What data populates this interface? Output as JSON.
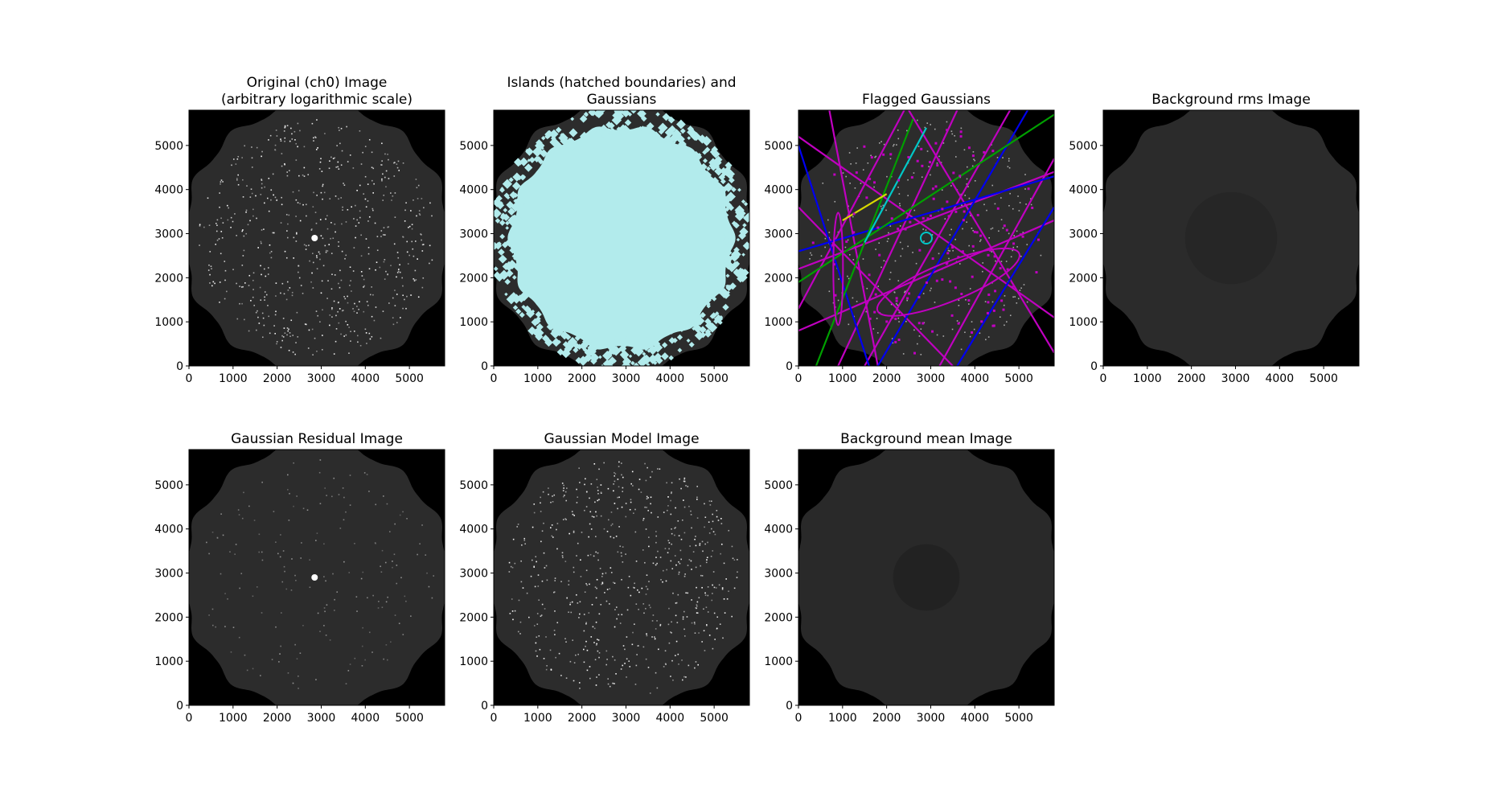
{
  "figure": {
    "panels": [
      {
        "title": [
          "Original (ch0) Image",
          "(arbitrary logarithmic scale)"
        ],
        "kind": "original",
        "xlim": [
          0,
          5800
        ],
        "ylim": [
          0,
          5800
        ],
        "xticks": [
          0,
          1000,
          2000,
          3000,
          4000,
          5000
        ],
        "yticks": [
          0,
          1000,
          2000,
          3000,
          4000,
          5000
        ]
      },
      {
        "title": [
          "Islands (hatched boundaries) and",
          "Gaussians"
        ],
        "kind": "islands",
        "xlim": [
          0,
          5800
        ],
        "ylim": [
          0,
          5800
        ],
        "xticks": [
          0,
          1000,
          2000,
          3000,
          4000,
          5000
        ],
        "yticks": [
          0,
          1000,
          2000,
          3000,
          4000,
          5000
        ]
      },
      {
        "title": [
          "Flagged Gaussians"
        ],
        "kind": "flagged",
        "xlim": [
          0,
          5800
        ],
        "ylim": [
          0,
          5800
        ],
        "xticks": [
          0,
          1000,
          2000,
          3000,
          4000,
          5000
        ],
        "yticks": [
          0,
          1000,
          2000,
          3000,
          4000,
          5000
        ]
      },
      {
        "title": [
          "Background rms Image"
        ],
        "kind": "rms",
        "xlim": [
          0,
          5800
        ],
        "ylim": [
          0,
          5800
        ],
        "xticks": [
          0,
          1000,
          2000,
          3000,
          4000,
          5000
        ],
        "yticks": [
          0,
          1000,
          2000,
          3000,
          4000,
          5000
        ]
      },
      {
        "title": [
          "Gaussian Residual Image"
        ],
        "kind": "residual",
        "xlim": [
          0,
          5800
        ],
        "ylim": [
          0,
          5800
        ],
        "xticks": [
          0,
          1000,
          2000,
          3000,
          4000,
          5000
        ],
        "yticks": [
          0,
          1000,
          2000,
          3000,
          4000,
          5000
        ]
      },
      {
        "title": [
          "Gaussian Model Image"
        ],
        "kind": "model",
        "xlim": [
          0,
          5800
        ],
        "ylim": [
          0,
          5800
        ],
        "xticks": [
          0,
          1000,
          2000,
          3000,
          4000,
          5000
        ],
        "yticks": [
          0,
          1000,
          2000,
          3000,
          4000,
          5000
        ]
      },
      {
        "title": [
          "Background mean Image"
        ],
        "kind": "mean",
        "xlim": [
          0,
          5800
        ],
        "ylim": [
          0,
          5800
        ],
        "xticks": [
          0,
          1000,
          2000,
          3000,
          4000,
          5000
        ],
        "yticks": [
          0,
          1000,
          2000,
          3000,
          4000,
          5000
        ]
      }
    ],
    "colors": {
      "background": "#000000",
      "field": "#2c2c2c",
      "rms_field": "#2b2b2b",
      "mean_field": "#292929",
      "island": "#b2ebec",
      "flag_magenta": "#c000c0",
      "flag_blue": "#0000f0",
      "flag_green": "#00a000",
      "flag_cyan": "#00c8c8",
      "flag_yellow": "#d8d800"
    }
  },
  "chart_data": [
    {
      "type": "heatmap",
      "title": "Original (ch0) Image (arbitrary logarithmic scale)",
      "xlim": [
        0,
        5800
      ],
      "ylim": [
        0,
        5800
      ],
      "xticks": [
        0,
        1000,
        2000,
        3000,
        4000,
        5000
      ],
      "yticks": [
        0,
        1000,
        2000,
        3000,
        4000,
        5000
      ],
      "bright_source": [
        2850,
        2900
      ]
    },
    {
      "type": "heatmap",
      "title": "Islands (hatched boundaries) and Gaussians",
      "xlim": [
        0,
        5800
      ],
      "ylim": [
        0,
        5800
      ],
      "xticks": [
        0,
        1000,
        2000,
        3000,
        4000,
        5000
      ],
      "yticks": [
        0,
        1000,
        2000,
        3000,
        4000,
        5000
      ]
    },
    {
      "type": "heatmap",
      "title": "Flagged Gaussians",
      "xlim": [
        0,
        5800
      ],
      "ylim": [
        0,
        5800
      ],
      "xticks": [
        0,
        1000,
        2000,
        3000,
        4000,
        5000
      ],
      "yticks": [
        0,
        1000,
        2000,
        3000,
        4000,
        5000
      ]
    },
    {
      "type": "heatmap",
      "title": "Background rms Image",
      "xlim": [
        0,
        5800
      ],
      "ylim": [
        0,
        5800
      ],
      "xticks": [
        0,
        1000,
        2000,
        3000,
        4000,
        5000
      ],
      "yticks": [
        0,
        1000,
        2000,
        3000,
        4000,
        5000
      ]
    },
    {
      "type": "heatmap",
      "title": "Gaussian Residual Image",
      "xlim": [
        0,
        5800
      ],
      "ylim": [
        0,
        5800
      ],
      "xticks": [
        0,
        1000,
        2000,
        3000,
        4000,
        5000
      ],
      "yticks": [
        0,
        1000,
        2000,
        3000,
        4000,
        5000
      ],
      "bright_source": [
        2850,
        2900
      ]
    },
    {
      "type": "heatmap",
      "title": "Gaussian Model Image",
      "xlim": [
        0,
        5800
      ],
      "ylim": [
        0,
        5800
      ],
      "xticks": [
        0,
        1000,
        2000,
        3000,
        4000,
        5000
      ],
      "yticks": [
        0,
        1000,
        2000,
        3000,
        4000,
        5000
      ]
    },
    {
      "type": "heatmap",
      "title": "Background mean Image",
      "xlim": [
        0,
        5800
      ],
      "ylim": [
        0,
        5800
      ],
      "xticks": [
        0,
        1000,
        2000,
        3000,
        4000,
        5000
      ],
      "yticks": [
        0,
        1000,
        2000,
        3000,
        4000,
        5000
      ]
    }
  ]
}
